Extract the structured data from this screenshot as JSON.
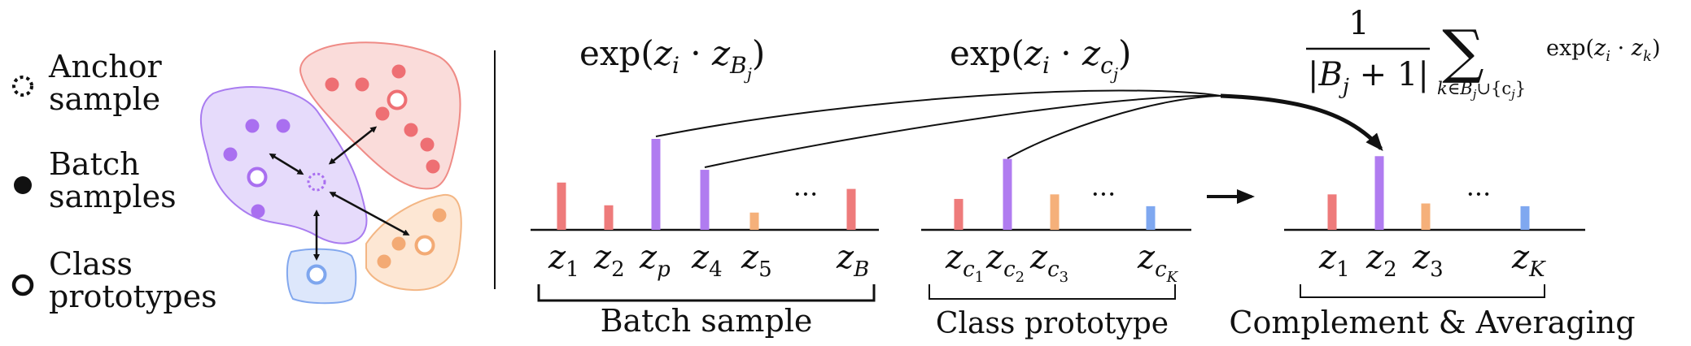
{
  "legend": {
    "anchor": "Anchor",
    "anchor_2": "sample",
    "batch": "Batch",
    "batch_2": "samples",
    "class": "Class",
    "class_2": "prototypes"
  },
  "formulas": {
    "batch_exp": "exp(",
    "batch_z": "z",
    "batch_i": "i",
    "batch_dot": " · ",
    "batch_z2": "z",
    "batch_B": "B",
    "batch_j": "j",
    "batch_close": ")",
    "proto_exp": "exp(",
    "proto_z": "z",
    "proto_i": "i",
    "proto_dot": " · ",
    "proto_z2": "z",
    "proto_c": "c",
    "proto_j": "j",
    "proto_close": ")",
    "avg_one": "1",
    "avg_den_open": "|",
    "avg_den_B": "B",
    "avg_den_j": "j",
    "avg_den_rest": " + 1|",
    "avg_sum": "∑",
    "avg_sub": "k∈B",
    "avg_sub_j": "j",
    "avg_sub_rest": "∪{c",
    "avg_sub_j2": "j",
    "avg_sub_close": "}",
    "avg_exp": "exp(",
    "avg_z": "z",
    "avg_i": "i",
    "avg_dot": " · ",
    "avg_z2": "z",
    "avg_k": "k",
    "avg_close": ")"
  },
  "axis_labels": {
    "batch": [
      {
        "base": "z",
        "sub": "1"
      },
      {
        "base": "z",
        "sub": "2"
      },
      {
        "base": "z",
        "sub": "p"
      },
      {
        "base": "z",
        "sub": "4"
      },
      {
        "base": "z",
        "sub": "5"
      },
      {
        "base": "z",
        "sub": "B"
      }
    ],
    "proto": [
      {
        "base": "z",
        "sub": "c",
        "subsub": "1"
      },
      {
        "base": "z",
        "sub": "c",
        "subsub": "2"
      },
      {
        "base": "z",
        "sub": "c",
        "subsub": "3"
      },
      {
        "base": "z",
        "sub": "c",
        "subsub": "K"
      }
    ],
    "result": [
      {
        "base": "z",
        "sub": "1"
      },
      {
        "base": "z",
        "sub": "2"
      },
      {
        "base": "z",
        "sub": "3"
      },
      {
        "base": "z",
        "sub": "K"
      }
    ]
  },
  "ellipsis": "···",
  "group_labels": {
    "batch": "Batch sample",
    "proto": "Class prototype",
    "result": "Complement & Averaging"
  },
  "bars": {
    "batch": [
      {
        "height": 0.52,
        "color": "#ee7b7b"
      },
      {
        "height": 0.27,
        "color": "#ee7b7b"
      },
      {
        "height": 1.0,
        "color": "#b07cf0"
      },
      {
        "height": 0.66,
        "color": "#b07cf0"
      },
      {
        "height": 0.19,
        "color": "#f5b07a"
      },
      {
        "height": 0.45,
        "color": "#ee7b7b"
      }
    ],
    "proto": [
      {
        "height": 0.34,
        "color": "#ee7b7b"
      },
      {
        "height": 0.78,
        "color": "#b07cf0"
      },
      {
        "height": 0.39,
        "color": "#f5b07a"
      },
      {
        "height": 0.26,
        "color": "#7fa8f0"
      }
    ],
    "result": [
      {
        "height": 0.39,
        "color": "#ee7b7b"
      },
      {
        "height": 0.81,
        "color": "#b07cf0"
      },
      {
        "height": 0.29,
        "color": "#f5b07a"
      },
      {
        "height": 0.26,
        "color": "#7fa8f0"
      }
    ]
  },
  "colors": {
    "purple_fill": "#e6dbfb",
    "purple_stroke": "#a97cf0",
    "purple_dot": "#a96ff0",
    "red_fill": "#fadcda",
    "red_stroke": "#ef8b86",
    "red_dot": "#ee6f73",
    "orange_fill": "#fde7d4",
    "orange_stroke": "#f3b684",
    "orange_dot": "#f3aa74",
    "blue_fill": "#dde7fb",
    "blue_stroke": "#83a8ee",
    "blue_dot": "#7ea6ee"
  }
}
